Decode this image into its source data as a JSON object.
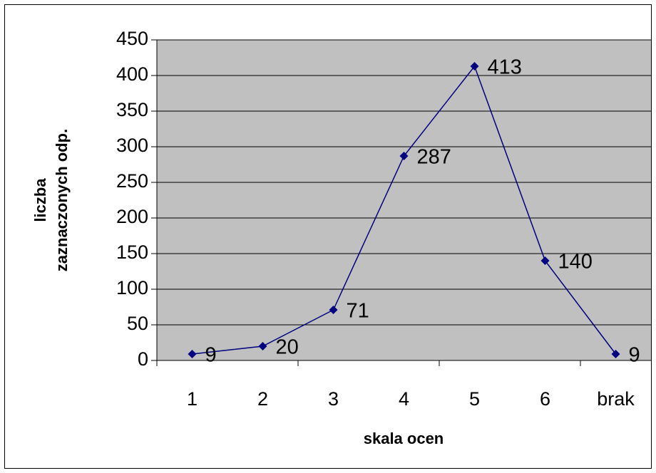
{
  "chart_data": {
    "type": "line",
    "xlabel": "skala ocen",
    "ylabel": [
      "liczba",
      "zaznaczonych odp."
    ],
    "categories": [
      "1",
      "2",
      "3",
      "4",
      "5",
      "6",
      "brak"
    ],
    "series": [
      {
        "color": "#000080",
        "values": [
          9,
          20,
          71,
          287,
          413,
          140,
          9
        ]
      }
    ],
    "ylim": [
      0,
      450
    ],
    "yticks": [
      0,
      50,
      100,
      150,
      200,
      250,
      300,
      350,
      400,
      450
    ],
    "grid": true,
    "plot_background": "#c0c0c0"
  }
}
